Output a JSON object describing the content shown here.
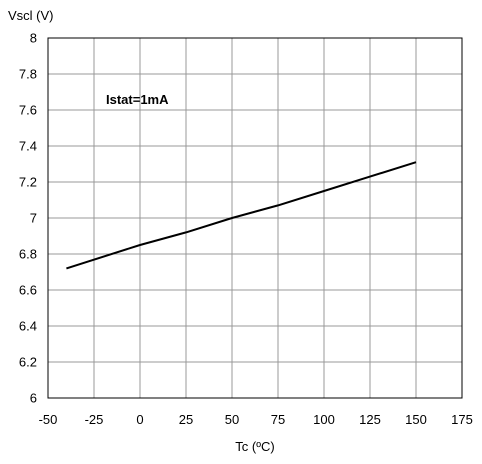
{
  "chart_data": {
    "type": "line",
    "title": "",
    "ylabel": "Vscl (V)",
    "xlabel": "Tc (ºC)",
    "annotation": "Istat=1mA",
    "xlim": [
      -50,
      175
    ],
    "ylim": [
      6,
      8
    ],
    "xticks": [
      "-50",
      "-25",
      "0",
      "25",
      "50",
      "75",
      "100",
      "125",
      "150",
      "175"
    ],
    "yticks": [
      "6",
      "6.2",
      "6.4",
      "6.6",
      "6.8",
      "7",
      "7.2",
      "7.4",
      "7.6",
      "7.8",
      "8"
    ],
    "grid": true,
    "series": [
      {
        "x": [
          -40,
          0,
          25,
          50,
          75,
          100,
          125,
          150
        ],
        "y": [
          6.72,
          6.85,
          6.92,
          7.0,
          7.07,
          7.15,
          7.23,
          7.31
        ]
      }
    ]
  }
}
